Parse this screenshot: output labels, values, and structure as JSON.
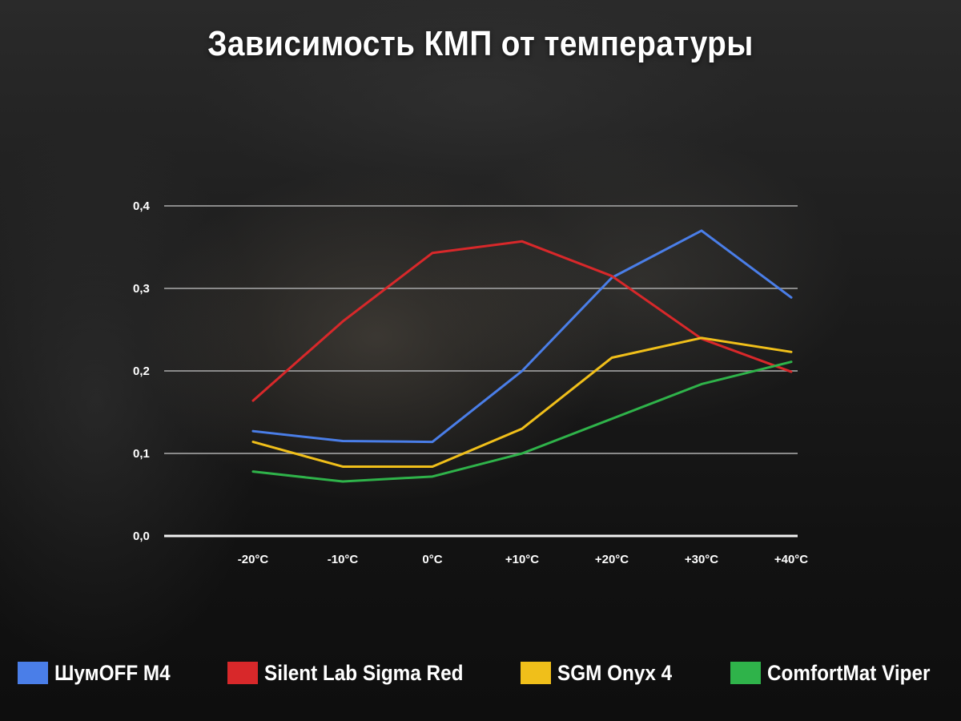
{
  "chart_data": {
    "type": "line",
    "title": "Зависимость КМП от температуры",
    "xlabel": "",
    "ylabel": "",
    "categories": [
      "-20°C",
      "-10°C",
      "0°C",
      "+10°C",
      "+20°C",
      "+30°C",
      "+40°C"
    ],
    "y_ticks": [
      "0,0",
      "0,1",
      "0,2",
      "0,3",
      "0,4"
    ],
    "ylim": [
      0,
      0.4
    ],
    "grid": true,
    "legend_position": "bottom",
    "series": [
      {
        "name": "ШумOFF M4",
        "color": "#4a7ee8",
        "values": [
          0.127,
          0.115,
          0.114,
          0.2,
          0.313,
          0.37,
          0.289
        ]
      },
      {
        "name": "Silent Lab Sigma Red",
        "color": "#d8282a",
        "values": [
          0.164,
          0.26,
          0.343,
          0.357,
          0.315,
          0.239,
          0.199
        ]
      },
      {
        "name": "SGM Onyx 4",
        "color": "#f0bf1a",
        "values": [
          0.114,
          0.084,
          0.084,
          0.13,
          0.216,
          0.24,
          0.223
        ]
      },
      {
        "name": "ComfortMat Viper",
        "color": "#2fb34a",
        "values": [
          0.078,
          0.066,
          0.072,
          0.1,
          0.142,
          0.184,
          0.211
        ]
      }
    ]
  }
}
